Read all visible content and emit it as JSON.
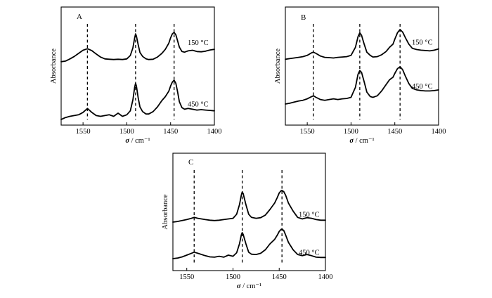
{
  "chart_data": [
    {
      "type": "line",
      "panel": "A",
      "xlabel_symbol": "σ",
      "xlabel_unit": " / cm⁻¹",
      "ylabel": "Absorbance",
      "xlim": [
        1575,
        1400
      ],
      "xreverse": true,
      "xticks": [
        1550,
        1500,
        1450,
        1400
      ],
      "marker_lines": [
        1545,
        1490,
        1446
      ],
      "series": [
        {
          "name": "150 °C",
          "x": [
            1575,
            1570,
            1565,
            1560,
            1555,
            1550,
            1545,
            1540,
            1535,
            1530,
            1525,
            1520,
            1515,
            1510,
            1505,
            1500,
            1496,
            1493,
            1491,
            1490,
            1489,
            1487,
            1485,
            1482,
            1478,
            1475,
            1470,
            1465,
            1460,
            1456,
            1452,
            1450,
            1448,
            1446,
            1444,
            1442,
            1440,
            1437,
            1434,
            1430,
            1425,
            1420,
            1415,
            1410,
            1405,
            1400
          ],
          "y": [
            0.05,
            0.07,
            0.14,
            0.22,
            0.32,
            0.42,
            0.47,
            0.41,
            0.3,
            0.2,
            0.14,
            0.13,
            0.12,
            0.13,
            0.12,
            0.14,
            0.25,
            0.5,
            0.82,
            0.95,
            0.88,
            0.6,
            0.35,
            0.22,
            0.14,
            0.12,
            0.13,
            0.2,
            0.32,
            0.45,
            0.65,
            0.82,
            0.95,
            1.0,
            0.92,
            0.72,
            0.52,
            0.38,
            0.36,
            0.4,
            0.42,
            0.38,
            0.37,
            0.39,
            0.43,
            0.45
          ]
        },
        {
          "name": "450 °C",
          "x": [
            1575,
            1570,
            1565,
            1560,
            1555,
            1550,
            1545,
            1540,
            1535,
            1530,
            1525,
            1520,
            1515,
            1510,
            1505,
            1500,
            1496,
            1493,
            1491,
            1490,
            1489,
            1487,
            1485,
            1482,
            1478,
            1475,
            1470,
            1465,
            1460,
            1456,
            1452,
            1450,
            1448,
            1446,
            1444,
            1442,
            1440,
            1437,
            1434,
            1430,
            1425,
            1420,
            1415,
            1410,
            1405,
            1400
          ],
          "y": [
            0.0,
            0.05,
            0.08,
            0.1,
            0.12,
            0.18,
            0.28,
            0.18,
            0.1,
            0.08,
            0.1,
            0.12,
            0.08,
            0.16,
            0.08,
            0.12,
            0.22,
            0.5,
            0.82,
            0.92,
            0.85,
            0.55,
            0.32,
            0.2,
            0.14,
            0.14,
            0.2,
            0.32,
            0.48,
            0.58,
            0.72,
            0.85,
            0.95,
            1.0,
            0.92,
            0.7,
            0.45,
            0.3,
            0.26,
            0.28,
            0.26,
            0.24,
            0.25,
            0.24,
            0.23,
            0.22
          ]
        }
      ]
    },
    {
      "type": "line",
      "panel": "B",
      "xlabel_symbol": "σ",
      "xlabel_unit": " / cm⁻¹",
      "ylabel": "Absorbance",
      "xlim": [
        1575,
        1400
      ],
      "xreverse": true,
      "xticks": [
        1550,
        1500,
        1450,
        1400
      ],
      "marker_lines": [
        1543,
        1490,
        1444
      ],
      "series": [
        {
          "name": "150 °C",
          "x": [
            1575,
            1570,
            1565,
            1560,
            1555,
            1550,
            1545,
            1543,
            1540,
            1535,
            1530,
            1525,
            1520,
            1515,
            1510,
            1505,
            1500,
            1495,
            1492,
            1490,
            1488,
            1485,
            1482,
            1478,
            1475,
            1470,
            1465,
            1460,
            1456,
            1452,
            1450,
            1447,
            1444,
            1441,
            1438,
            1434,
            1430,
            1425,
            1420,
            1415,
            1410,
            1405,
            1400
          ],
          "y": [
            0.08,
            0.1,
            0.12,
            0.14,
            0.16,
            0.2,
            0.28,
            0.3,
            0.26,
            0.18,
            0.14,
            0.13,
            0.12,
            0.14,
            0.15,
            0.16,
            0.2,
            0.45,
            0.78,
            0.9,
            0.82,
            0.55,
            0.3,
            0.2,
            0.15,
            0.16,
            0.22,
            0.32,
            0.45,
            0.55,
            0.7,
            0.9,
            1.0,
            0.92,
            0.75,
            0.55,
            0.42,
            0.38,
            0.36,
            0.35,
            0.34,
            0.36,
            0.4
          ]
        },
        {
          "name": "450 °C",
          "x": [
            1575,
            1570,
            1565,
            1560,
            1555,
            1550,
            1545,
            1543,
            1540,
            1535,
            1530,
            1525,
            1520,
            1515,
            1510,
            1505,
            1500,
            1495,
            1492,
            1490,
            1488,
            1485,
            1482,
            1478,
            1475,
            1470,
            1465,
            1460,
            1456,
            1452,
            1450,
            1447,
            1444,
            1441,
            1438,
            1434,
            1430,
            1425,
            1420,
            1415,
            1410,
            1405,
            1400
          ],
          "y": [
            0.0,
            0.02,
            0.05,
            0.08,
            0.1,
            0.14,
            0.2,
            0.22,
            0.18,
            0.12,
            0.1,
            0.12,
            0.14,
            0.12,
            0.14,
            0.15,
            0.18,
            0.45,
            0.8,
            0.9,
            0.85,
            0.6,
            0.32,
            0.2,
            0.18,
            0.22,
            0.35,
            0.52,
            0.65,
            0.72,
            0.82,
            0.95,
            1.0,
            0.92,
            0.75,
            0.55,
            0.42,
            0.38,
            0.36,
            0.35,
            0.35,
            0.36,
            0.38
          ]
        }
      ]
    },
    {
      "type": "line",
      "panel": "C",
      "xlabel_symbol": "σ",
      "xlabel_unit": " / cm⁻¹",
      "ylabel": "Absorbance",
      "xlim": [
        1565,
        1400
      ],
      "xreverse": true,
      "xticks": [
        1550,
        1500,
        1450,
        1400
      ],
      "marker_lines": [
        1542,
        1490,
        1447
      ],
      "series": [
        {
          "name": "150 °C",
          "x": [
            1565,
            1560,
            1555,
            1550,
            1545,
            1542,
            1538,
            1530,
            1525,
            1520,
            1515,
            1510,
            1505,
            1500,
            1496,
            1493,
            1491,
            1490,
            1489,
            1486,
            1483,
            1480,
            1475,
            1470,
            1465,
            1460,
            1455,
            1452,
            1450,
            1448,
            1447,
            1445,
            1443,
            1440,
            1435,
            1430,
            1425,
            1420,
            1415,
            1410,
            1405,
            1400
          ],
          "y": [
            0.0,
            0.02,
            0.05,
            0.08,
            0.12,
            0.15,
            0.12,
            0.08,
            0.06,
            0.05,
            0.06,
            0.08,
            0.1,
            0.12,
            0.25,
            0.55,
            0.85,
            0.95,
            0.9,
            0.55,
            0.25,
            0.15,
            0.12,
            0.14,
            0.22,
            0.4,
            0.6,
            0.78,
            0.92,
            0.99,
            1.0,
            0.96,
            0.85,
            0.6,
            0.35,
            0.15,
            0.1,
            0.14,
            0.12,
            0.08,
            0.06,
            0.06
          ]
        },
        {
          "name": "450 °C",
          "x": [
            1565,
            1560,
            1555,
            1550,
            1545,
            1542,
            1538,
            1530,
            1525,
            1520,
            1515,
            1510,
            1505,
            1500,
            1496,
            1493,
            1491,
            1490,
            1489,
            1486,
            1483,
            1480,
            1475,
            1470,
            1465,
            1460,
            1455,
            1452,
            1450,
            1448,
            1447,
            1445,
            1443,
            1440,
            1435,
            1430,
            1425,
            1420,
            1415,
            1410,
            1405,
            1400
          ],
          "y": [
            0.0,
            0.02,
            0.06,
            0.12,
            0.18,
            0.22,
            0.18,
            0.1,
            0.06,
            0.05,
            0.08,
            0.05,
            0.12,
            0.08,
            0.2,
            0.5,
            0.8,
            0.88,
            0.82,
            0.5,
            0.22,
            0.15,
            0.14,
            0.18,
            0.3,
            0.5,
            0.65,
            0.8,
            0.92,
            0.99,
            1.0,
            0.95,
            0.8,
            0.55,
            0.3,
            0.14,
            0.1,
            0.14,
            0.1,
            0.05,
            0.04,
            0.04
          ]
        }
      ]
    }
  ]
}
